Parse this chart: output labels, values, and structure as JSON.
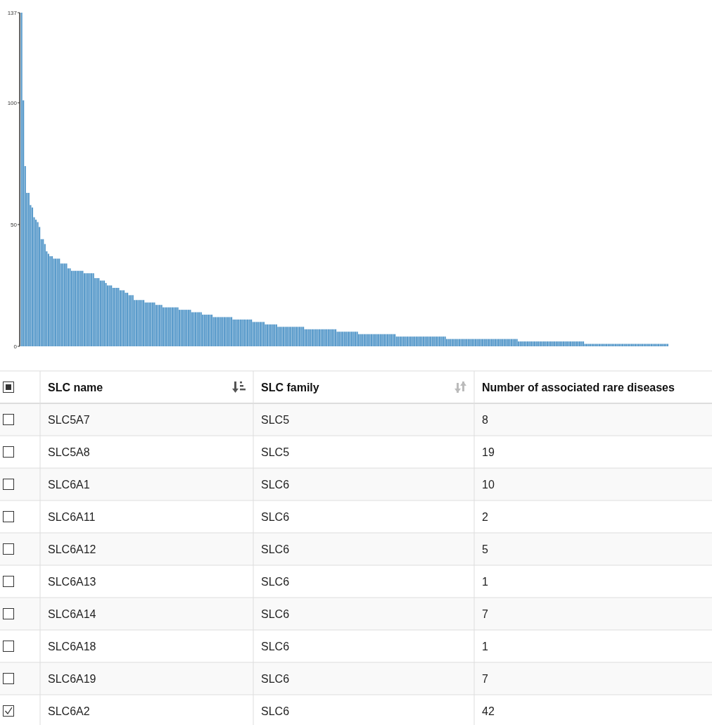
{
  "chart_data": [
    {
      "type": "bar",
      "color": "#5a9bcb",
      "ylim": [
        0,
        137
      ],
      "yticks": [
        0,
        50,
        100,
        137
      ],
      "grid": false,
      "categories": [
        null,
        null,
        null,
        null,
        null,
        null,
        null,
        null,
        null,
        null,
        null,
        null,
        null,
        null,
        null,
        null,
        null,
        null,
        null,
        null,
        null,
        null,
        null,
        null,
        null,
        null,
        null,
        null,
        null,
        null,
        null,
        null,
        null,
        null,
        null,
        null,
        null,
        null,
        null,
        null,
        null,
        null,
        null,
        null,
        null,
        null,
        null,
        null,
        null,
        null,
        null,
        null,
        null,
        null,
        null,
        null,
        null,
        null,
        null,
        null,
        null,
        null,
        null,
        null,
        null,
        null,
        null,
        null,
        null,
        null,
        null,
        null,
        null,
        null,
        null,
        null,
        null,
        null,
        null,
        null,
        null,
        null,
        null,
        null,
        null,
        null,
        null,
        null,
        null,
        null,
        null,
        null,
        null,
        null,
        null,
        null,
        null,
        null,
        null,
        null,
        null,
        null,
        null,
        null,
        null,
        null,
        null,
        null,
        null,
        null,
        null,
        null,
        null,
        null,
        null,
        null,
        null,
        null,
        null,
        null,
        null,
        null,
        null,
        null,
        null,
        null,
        null,
        null,
        null,
        null,
        null,
        null,
        null,
        null,
        null,
        null,
        null,
        null,
        null,
        null,
        null,
        null,
        null,
        null,
        null,
        null,
        null,
        null,
        null,
        null,
        null,
        null,
        null,
        null,
        null,
        null,
        null,
        null,
        null,
        null,
        null,
        null,
        null,
        null,
        null,
        null,
        null,
        null,
        null,
        null,
        null,
        null,
        null,
        null,
        null,
        null,
        null,
        null,
        null,
        null,
        null,
        null,
        null,
        null,
        null,
        null,
        null,
        null,
        null,
        null,
        null,
        null,
        null,
        null,
        null,
        null,
        null,
        null,
        null,
        null,
        null,
        null,
        null,
        null,
        null,
        null,
        null,
        null,
        null,
        null,
        null,
        null,
        null,
        null,
        null,
        null,
        null,
        null,
        null,
        null,
        null,
        null,
        null,
        null,
        null,
        null,
        null,
        null,
        null,
        null,
        null,
        null,
        null,
        null,
        null,
        null,
        null,
        null,
        null,
        null,
        null,
        null,
        null,
        null,
        null,
        null,
        null,
        null,
        null,
        null,
        null,
        null,
        null,
        null,
        null,
        null,
        null,
        null,
        null,
        null,
        null,
        null,
        null,
        null,
        null,
        null,
        null,
        null,
        null,
        null,
        null,
        null,
        null,
        null,
        null,
        null,
        null,
        null,
        null,
        null,
        null,
        null,
        null,
        null,
        null,
        null,
        null,
        null,
        null,
        null,
        null,
        null,
        null,
        null,
        null,
        null,
        null,
        null,
        null,
        null,
        null,
        null,
        null,
        null,
        null,
        null,
        null,
        null,
        null,
        null,
        null,
        null,
        null,
        null,
        null,
        null,
        null,
        null,
        null,
        null,
        null,
        null,
        null,
        null,
        null,
        null,
        null,
        null,
        null,
        null,
        null,
        null,
        null,
        null,
        null,
        null,
        null,
        null,
        null,
        null,
        null,
        null,
        null,
        null,
        null,
        null,
        null,
        null,
        null,
        null,
        null,
        null,
        null,
        null,
        null,
        null,
        null,
        null,
        null,
        null,
        null
      ],
      "values": [
        137,
        101,
        74,
        63,
        63,
        58,
        57,
        53,
        52,
        51,
        49,
        44,
        44,
        42,
        39,
        38,
        37,
        37,
        36,
        36,
        36,
        36,
        34,
        34,
        34,
        34,
        32,
        32,
        31,
        31,
        31,
        31,
        31,
        31,
        31,
        30,
        30,
        30,
        30,
        30,
        30,
        28,
        28,
        28,
        27,
        27,
        27,
        26,
        25,
        25,
        25,
        24,
        24,
        24,
        24,
        23,
        23,
        23,
        22,
        22,
        21,
        21,
        21,
        19,
        19,
        19,
        19,
        19,
        19,
        18,
        18,
        18,
        18,
        18,
        18,
        17,
        17,
        17,
        17,
        16,
        16,
        16,
        16,
        16,
        16,
        16,
        16,
        16,
        15,
        15,
        15,
        15,
        15,
        15,
        15,
        14,
        14,
        14,
        14,
        14,
        14,
        13,
        13,
        13,
        13,
        13,
        13,
        12,
        12,
        12,
        12,
        12,
        12,
        12,
        12,
        12,
        12,
        12,
        11,
        11,
        11,
        11,
        11,
        11,
        11,
        11,
        11,
        11,
        11,
        10,
        10,
        10,
        10,
        10,
        10,
        10,
        9,
        9,
        9,
        9,
        9,
        9,
        9,
        8,
        8,
        8,
        8,
        8,
        8,
        8,
        8,
        8,
        8,
        8,
        8,
        8,
        8,
        8,
        7,
        7,
        7,
        7,
        7,
        7,
        7,
        7,
        7,
        7,
        7,
        7,
        7,
        7,
        7,
        7,
        7,
        7,
        6,
        6,
        6,
        6,
        6,
        6,
        6,
        6,
        6,
        6,
        6,
        6,
        5,
        5,
        5,
        5,
        5,
        5,
        5,
        5,
        5,
        5,
        5,
        5,
        5,
        5,
        5,
        5,
        5,
        5,
        5,
        5,
        5,
        4,
        4,
        4,
        4,
        4,
        4,
        4,
        4,
        4,
        4,
        4,
        4,
        4,
        4,
        4,
        4,
        4,
        4,
        4,
        4,
        4,
        4,
        4,
        4,
        4,
        4,
        4,
        4,
        3,
        3,
        3,
        3,
        3,
        3,
        3,
        3,
        3,
        3,
        3,
        3,
        3,
        3,
        3,
        3,
        3,
        3,
        3,
        3,
        3,
        3,
        3,
        3,
        3,
        3,
        3,
        3,
        3,
        3,
        3,
        3,
        3,
        3,
        3,
        3,
        3,
        3,
        3,
        3,
        2,
        2,
        2,
        2,
        2,
        2,
        2,
        2,
        2,
        2,
        2,
        2,
        2,
        2,
        2,
        2,
        2,
        2,
        2,
        2,
        2,
        2,
        2,
        2,
        2,
        2,
        2,
        2,
        2,
        2,
        2,
        2,
        2,
        2,
        2,
        2,
        2,
        1,
        1,
        1,
        1,
        1,
        1,
        1,
        1,
        1,
        1,
        1,
        1,
        1,
        1,
        1,
        1,
        1,
        1,
        1,
        1,
        1,
        1,
        1,
        1,
        1,
        1,
        1,
        1,
        1,
        1,
        1,
        1,
        1,
        1,
        1,
        1,
        1,
        1,
        1,
        1,
        1,
        1,
        1,
        1,
        1,
        1,
        1
      ]
    },
    {
      "type": "other",
      "categories": [
        "SLC name",
        "SLC family",
        "Number of associated rare diseases"
      ],
      "annotations": [
        "SLC5A7",
        "SLC5",
        "8",
        "SLC5A8",
        "SLC5",
        "19",
        "SLC6A1",
        "SLC6",
        "10",
        "SLC6A11",
        "SLC6",
        "2",
        "SLC6A12",
        "SLC6",
        "5",
        "SLC6A13",
        "SLC6",
        "1",
        "SLC6A14",
        "SLC6",
        "7",
        "SLC6A18",
        "SLC6",
        "1",
        "SLC6A19",
        "SLC6",
        "7",
        "SLC6A2",
        "SLC6",
        "42"
      ]
    }
  ]
}
